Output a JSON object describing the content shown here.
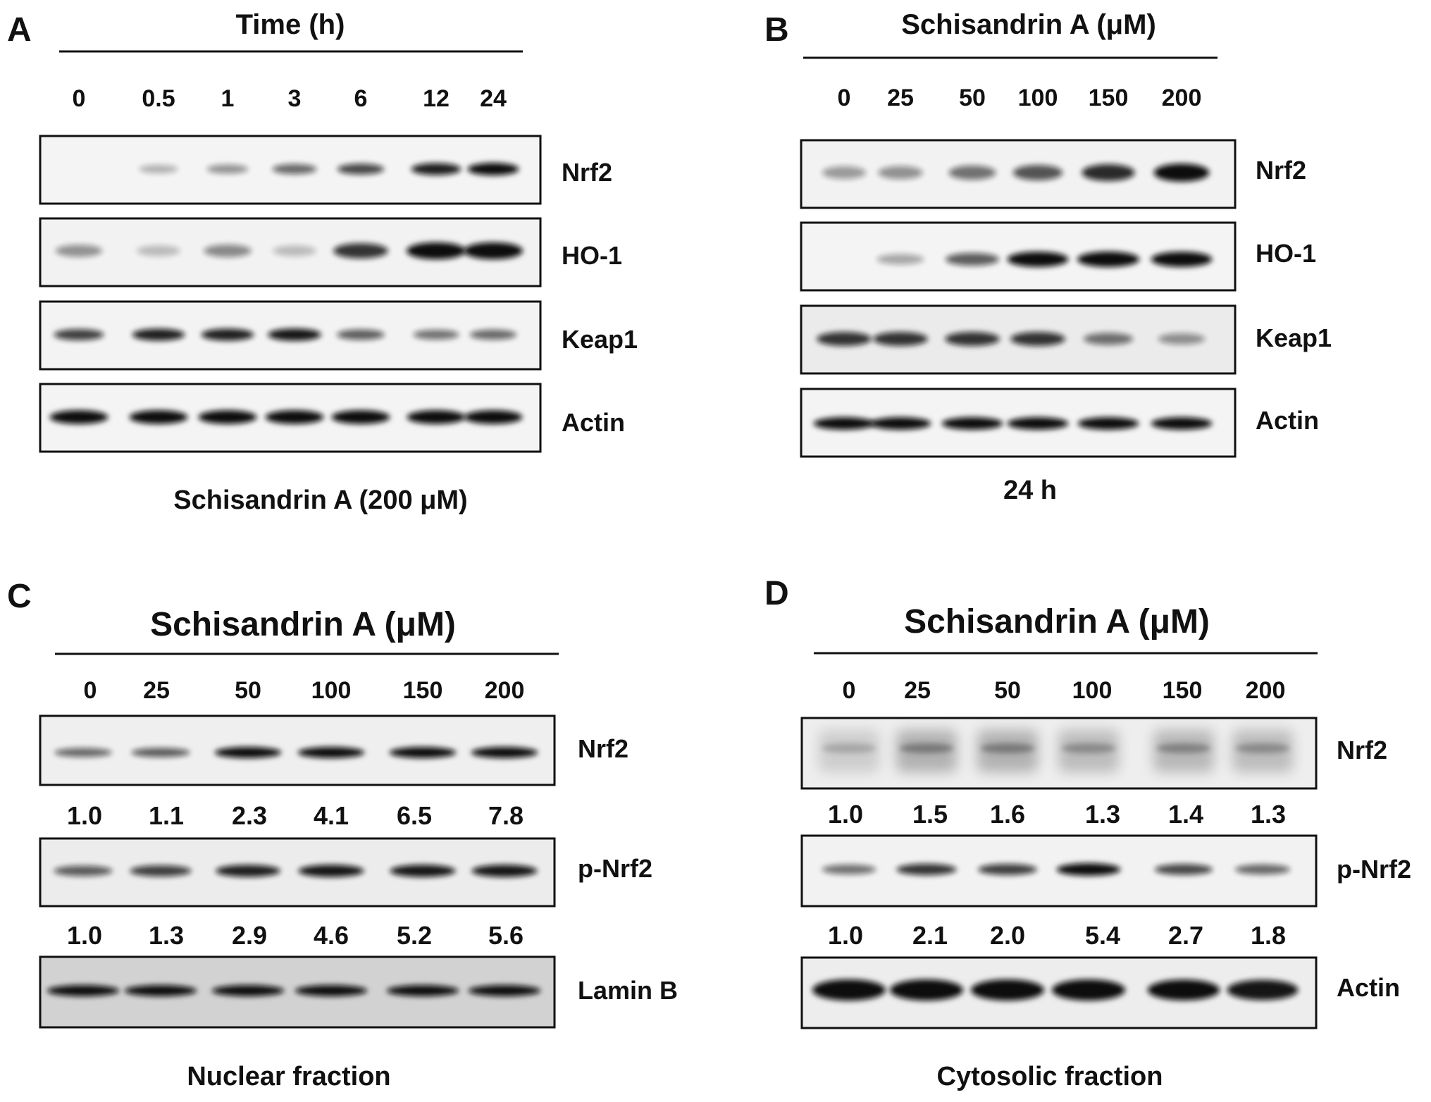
{
  "panels": {
    "A": {
      "letter": "A",
      "header": "Time (h)",
      "lanes": [
        "0",
        "0.5",
        "1",
        "3",
        "6",
        "12",
        "24"
      ],
      "blots": [
        "Nrf2",
        "HO-1",
        "Keap1",
        "Actin"
      ],
      "caption": "Schisandrin A (200 μM)"
    },
    "B": {
      "letter": "B",
      "header": "Schisandrin A (μM)",
      "lanes": [
        "0",
        "25",
        "50",
        "100",
        "150",
        "200"
      ],
      "blots": [
        "Nrf2",
        "HO-1",
        "Keap1",
        "Actin"
      ],
      "caption": "24 h"
    },
    "C": {
      "letter": "C",
      "header": "Schisandrin A (μM)",
      "lanes": [
        "0",
        "25",
        "50",
        "100",
        "150",
        "200"
      ],
      "blots": [
        "Nrf2",
        "p-Nrf2",
        "Lamin B"
      ],
      "quant": [
        [
          "1.0",
          "1.1",
          "2.3",
          "4.1",
          "6.5",
          "7.8"
        ],
        [
          "1.0",
          "1.3",
          "2.9",
          "4.6",
          "5.2",
          "5.6"
        ]
      ],
      "caption": "Nuclear fraction"
    },
    "D": {
      "letter": "D",
      "header": "Schisandrin A (μM)",
      "lanes": [
        "0",
        "25",
        "50",
        "100",
        "150",
        "200"
      ],
      "blots": [
        "Nrf2",
        "p-Nrf2",
        "Actin"
      ],
      "quant": [
        [
          "1.0",
          "1.5",
          "1.6",
          "1.3",
          "1.4",
          "1.3"
        ],
        [
          "1.0",
          "2.1",
          "2.0",
          "5.4",
          "2.7",
          "1.8"
        ]
      ],
      "caption": "Cytosolic fraction"
    }
  },
  "band_intensity": {
    "A": {
      "Nrf2": [
        0.0,
        0.15,
        0.3,
        0.5,
        0.65,
        0.85,
        0.95
      ],
      "HO-1": [
        0.3,
        0.1,
        0.35,
        0.1,
        0.75,
        1.0,
        1.0
      ],
      "Keap1": [
        0.7,
        0.85,
        0.85,
        0.9,
        0.55,
        0.45,
        0.5
      ],
      "Actin": [
        0.95,
        0.95,
        0.95,
        0.95,
        0.95,
        0.95,
        0.95
      ]
    },
    "B": {
      "Nrf2": [
        0.25,
        0.3,
        0.45,
        0.6,
        0.8,
        0.95
      ],
      "HO-1": [
        0.0,
        0.2,
        0.55,
        0.95,
        1.0,
        0.95
      ],
      "Keap1": [
        0.75,
        0.75,
        0.75,
        0.75,
        0.45,
        0.3
      ],
      "Actin": [
        0.95,
        0.95,
        0.95,
        0.95,
        0.95,
        0.95
      ]
    },
    "C": {
      "Nrf2": [
        0.5,
        0.55,
        0.95,
        0.95,
        0.95,
        0.95
      ],
      "p-Nrf2": [
        0.55,
        0.7,
        0.85,
        0.9,
        0.9,
        0.9
      ],
      "Lamin B": [
        0.95,
        0.95,
        0.95,
        0.95,
        0.95,
        0.95
      ]
    },
    "D": {
      "Nrf2": [
        0.3,
        0.55,
        0.55,
        0.45,
        0.5,
        0.45
      ],
      "p-Nrf2": [
        0.45,
        0.75,
        0.7,
        0.95,
        0.65,
        0.5
      ],
      "Actin": [
        1.0,
        1.0,
        1.0,
        1.0,
        0.95,
        0.9
      ]
    }
  },
  "colors": {
    "blot_background": "#f4f4f4",
    "blot_background_lamin": "#d2d2d2",
    "band": "#0d0d0d",
    "text": "#111111"
  }
}
